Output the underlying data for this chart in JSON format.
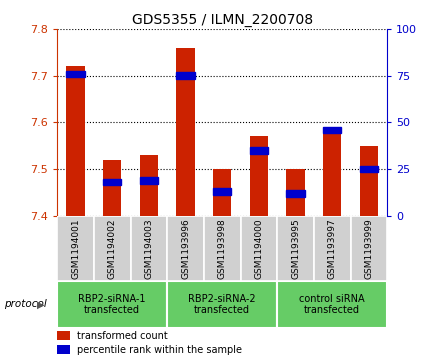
{
  "title": "GDS5355 / ILMN_2200708",
  "samples": [
    "GSM1194001",
    "GSM1194002",
    "GSM1194003",
    "GSM1193996",
    "GSM1193998",
    "GSM1194000",
    "GSM1193995",
    "GSM1193997",
    "GSM1193999"
  ],
  "red_values": [
    7.72,
    7.52,
    7.53,
    7.76,
    7.5,
    7.57,
    7.5,
    7.59,
    7.55
  ],
  "blue_values": [
    76,
    18,
    19,
    75,
    13,
    35,
    12,
    46,
    25
  ],
  "groups": [
    {
      "label": "RBP2-siRNA-1\ntransfected",
      "start": 0,
      "end": 3,
      "color": "#90EE90"
    },
    {
      "label": "RBP2-siRNA-2\ntransfected",
      "start": 3,
      "end": 6,
      "color": "#90EE90"
    },
    {
      "label": "control siRNA\ntransfected",
      "start": 6,
      "end": 9,
      "color": "#90EE90"
    }
  ],
  "ylim_left": [
    7.4,
    7.8
  ],
  "ylim_right": [
    0,
    100
  ],
  "yticks_left": [
    7.4,
    7.5,
    7.6,
    7.7,
    7.8
  ],
  "yticks_right": [
    0,
    25,
    50,
    75,
    100
  ],
  "left_color": "#cc3300",
  "right_color": "#0000cc",
  "bar_bottom": 7.4,
  "bar_width": 0.5,
  "sample_box_color": "#d0d0d0",
  "group_box_color": "#66cc66",
  "legend_red": "#cc2200",
  "legend_blue": "#0000cc"
}
